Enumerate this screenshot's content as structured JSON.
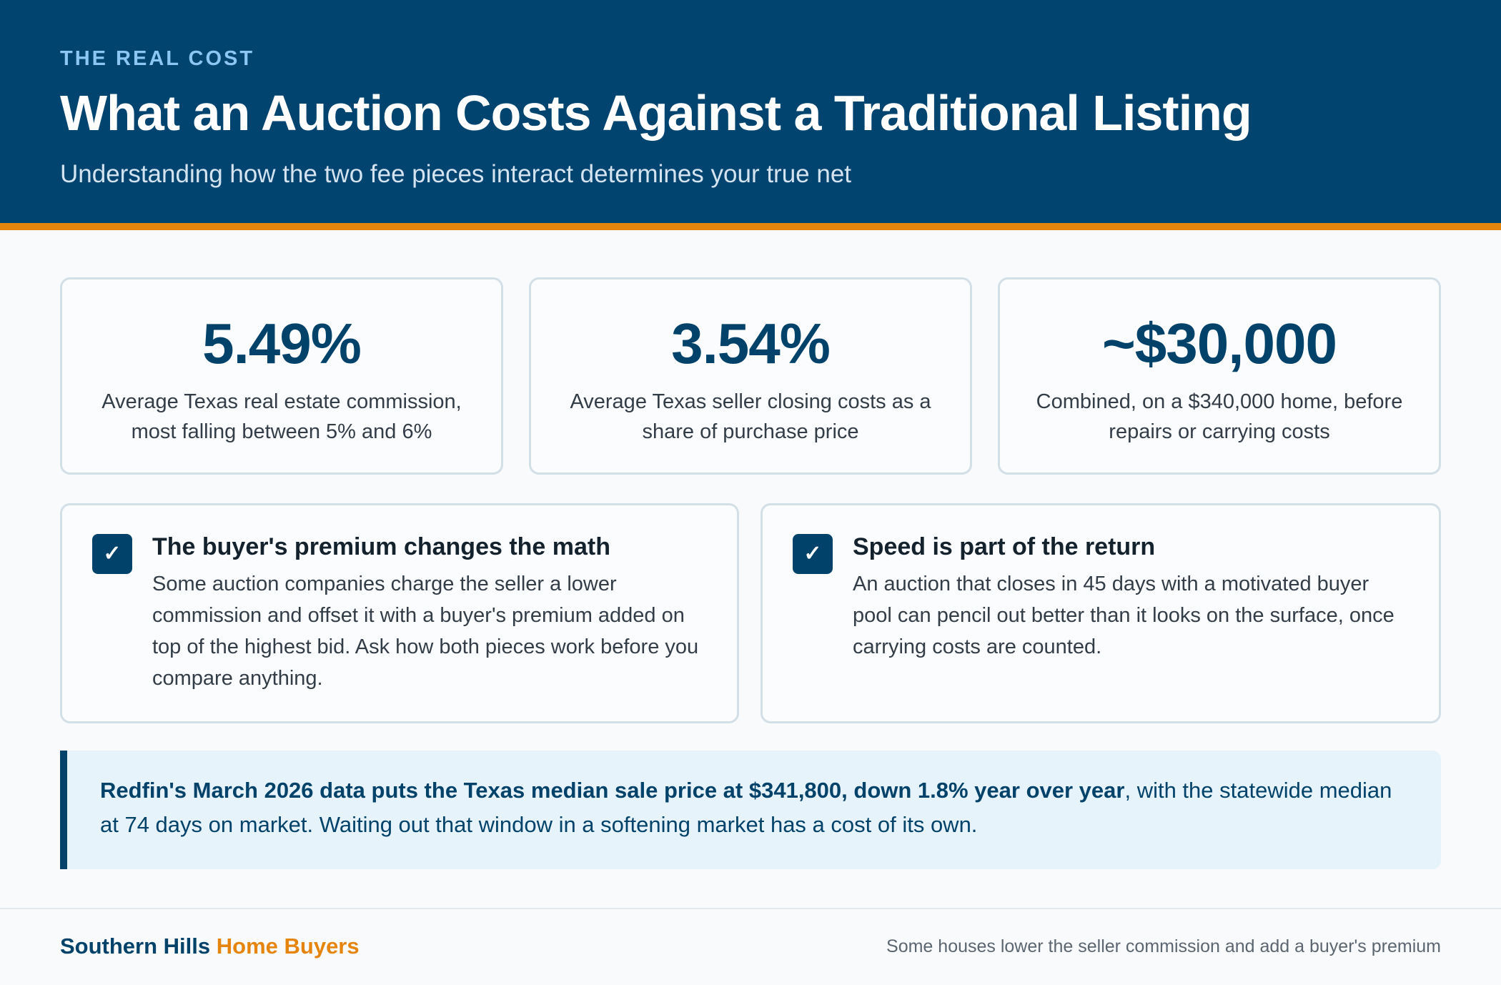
{
  "header": {
    "eyebrow": "THE REAL COST",
    "title": "What an Auction Costs Against a Traditional Listing",
    "subtitle": "Understanding how the two fee pieces interact determines your true net"
  },
  "stats": [
    {
      "value": "5.49%",
      "desc": "Average Texas real estate commission, most falling between 5% and 6%"
    },
    {
      "value": "3.54%",
      "desc": "Average Texas seller closing costs as a share of purchase price"
    },
    {
      "value": "~$30,000",
      "desc": "Combined, on a $340,000 home, before repairs or carrying costs"
    }
  ],
  "info_cards": [
    {
      "check": "✓",
      "title": "The buyer's premium changes the math",
      "body": "Some auction companies charge the seller a lower commission and offset it with a buyer's premium added on top of the highest bid. Ask how both pieces work before you compare anything."
    },
    {
      "check": "✓",
      "title": "Speed is part of the return",
      "body": "An auction that closes in 45 days with a motivated buyer pool can pencil out better than it looks on the surface, once carrying costs are counted."
    }
  ],
  "callout": {
    "bold": "Redfin's March 2026 data puts the Texas median sale price at $341,800, down 1.8% year over year",
    "rest": ", with the statewide median at 74 days on market. Waiting out that window in a softening market has a cost of its own."
  },
  "footer": {
    "brand_primary": "Southern Hills",
    "brand_accent": "Home Buyers",
    "note": "Some houses lower the seller commission and add a buyer's premium"
  },
  "colors": {
    "navy": "#01446f",
    "accent_orange": "#e6850e",
    "callout_bg": "#e7f3fb"
  }
}
